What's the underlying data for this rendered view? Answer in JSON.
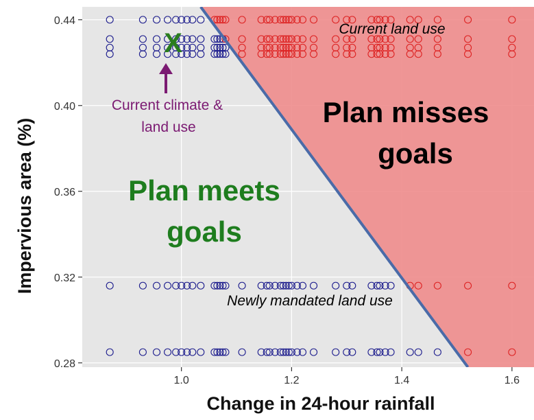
{
  "chart_data": {
    "type": "scatter",
    "title": "",
    "xlabel": "Change in 24-hour rainfall",
    "ylabel": "Impervious area (%)",
    "xlim": [
      0.82,
      1.64
    ],
    "ylim": [
      0.278,
      0.446
    ],
    "x_ticks": [
      1.0,
      1.2,
      1.4,
      1.6
    ],
    "x_tick_labels": [
      "1.0",
      "1.2",
      "1.4",
      "1.6"
    ],
    "y_ticks": [
      0.28,
      0.32,
      0.36,
      0.4,
      0.44
    ],
    "y_tick_labels": [
      "0.28",
      "0.32",
      "0.36",
      "0.40",
      "0.44"
    ],
    "grid": true,
    "background_color": "#e6e6e6",
    "grid_color": "#ffffff",
    "zones": [
      {
        "name": "miss",
        "label_lines": [
          "Plan misses",
          "goals"
        ],
        "color": "#ee8c8c",
        "text_color": "#000000"
      },
      {
        "name": "meet",
        "label_lines": [
          "Plan meets",
          "goals"
        ],
        "color": "#e6e6e6",
        "text_color": "#1e7d1e"
      }
    ],
    "threshold_line": {
      "x": [
        1.035,
        1.52
      ],
      "y": [
        0.446,
        0.278
      ],
      "color": "#4a6ba8"
    },
    "point_colors": {
      "meets": "#1a1a8c",
      "misses": "#dd2222"
    },
    "x_values": [
      0.87,
      0.93,
      0.955,
      0.975,
      0.99,
      1.0,
      1.01,
      1.02,
      1.035,
      1.06,
      1.065,
      1.07,
      1.075,
      1.08,
      1.11,
      1.145,
      1.155,
      1.16,
      1.17,
      1.18,
      1.185,
      1.19,
      1.195,
      1.2,
      1.21,
      1.22,
      1.24,
      1.28,
      1.3,
      1.31,
      1.345,
      1.355,
      1.36,
      1.37,
      1.38,
      1.415,
      1.43,
      1.465,
      1.52,
      1.6
    ],
    "y_series": [
      {
        "y": 0.44,
        "x_max": 1.6
      },
      {
        "y": 0.431,
        "x_max": 1.6
      },
      {
        "y": 0.427,
        "x_max": 1.6
      },
      {
        "y": 0.424,
        "x_max": 1.6
      },
      {
        "y": 0.316,
        "x_max": 1.6
      },
      {
        "y": 0.285,
        "x_max": 1.6
      }
    ],
    "annotations": {
      "current_land_use": "Current land use",
      "newly_mandated": "Newly mandated land use",
      "current_climate_line1": "Current climate &",
      "current_climate_line2": "land use",
      "marker": "X",
      "marker_x": 0.99,
      "marker_y": 0.43
    }
  }
}
